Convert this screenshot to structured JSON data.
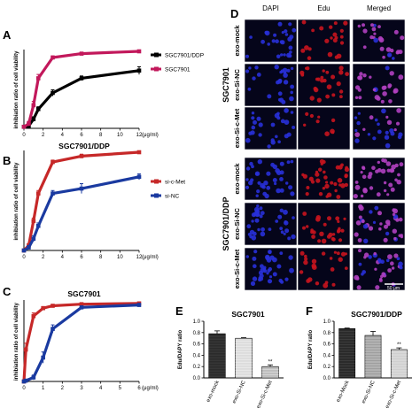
{
  "figure": {
    "panel_labels": [
      "A",
      "B",
      "C",
      "D",
      "E",
      "F"
    ]
  },
  "chart_data": [
    {
      "panel": "A",
      "type": "line",
      "title": "",
      "xlabel": "(μg/ml)",
      "ylabel": "inhibiation ratio of cell viability",
      "xlim": [
        0,
        12
      ],
      "xticks": [
        0,
        2,
        4,
        6,
        8,
        10,
        12
      ],
      "x": [
        0,
        0.5,
        1,
        1.5,
        3,
        6,
        12
      ],
      "series": [
        {
          "name": "SGC7901/DDP",
          "color": "#000000",
          "values": [
            0.02,
            0.03,
            0.12,
            0.25,
            0.46,
            0.65,
            0.75
          ],
          "errors": [
            0.02,
            0.02,
            0.03,
            0.03,
            0.04,
            0.03,
            0.05
          ]
        },
        {
          "name": "SGC7901",
          "color": "#c2185b",
          "values": [
            0.02,
            0.06,
            0.3,
            0.65,
            0.92,
            0.97,
            1.0
          ],
          "errors": [
            0.02,
            0.03,
            0.05,
            0.05,
            0.02,
            0.01,
            0.01
          ]
        }
      ]
    },
    {
      "panel": "B",
      "type": "line",
      "title": "SGC7901/DDP",
      "xlabel": "(μg/ml)",
      "ylabel": "inhibiation ratio of cell viability",
      "xlim": [
        0,
        12
      ],
      "xticks": [
        0,
        2,
        4,
        6,
        8,
        10,
        12
      ],
      "x": [
        0,
        0.5,
        1,
        1.5,
        3,
        6,
        12
      ],
      "series": [
        {
          "name": "si-c-Met",
          "color": "#c62828",
          "values": [
            0.0,
            0.05,
            0.3,
            0.58,
            0.9,
            0.96,
            1.0
          ],
          "errors": [
            0.01,
            0.02,
            0.03,
            0.03,
            0.02,
            0.02,
            0.01
          ]
        },
        {
          "name": "si-NC",
          "color": "#1a3aa0",
          "values": [
            0.0,
            0.03,
            0.12,
            0.25,
            0.58,
            0.63,
            0.75
          ],
          "errors": [
            0.01,
            0.02,
            0.03,
            0.03,
            0.03,
            0.05,
            0.03
          ]
        }
      ]
    },
    {
      "panel": "C",
      "type": "line",
      "title": "SGC7901",
      "xlabel": "(μg/ml)",
      "ylabel": "inhibiation ratio of cell viability",
      "xlim": [
        0,
        6
      ],
      "xticks": [
        0,
        1,
        2,
        3,
        4,
        5,
        6
      ],
      "x": [
        0,
        0.1,
        0.5,
        1,
        1.5,
        3,
        6
      ],
      "series": [
        {
          "name": "",
          "color": "#c62828",
          "values": [
            0.0,
            0.4,
            0.82,
            0.92,
            0.95,
            0.97,
            0.98
          ],
          "errors": [
            0.01,
            0.08,
            0.04,
            0.02,
            0.01,
            0.01,
            0.01
          ]
        },
        {
          "name": "",
          "color": "#1a3aa0",
          "values": [
            0.0,
            0.01,
            0.05,
            0.3,
            0.66,
            0.93,
            0.96
          ],
          "errors": [
            0.01,
            0.01,
            0.03,
            0.07,
            0.05,
            0.02,
            0.02
          ]
        }
      ]
    },
    {
      "panel": "E",
      "type": "bar",
      "title": "SGC7901",
      "ylabel": "Edu/DAPY ratio",
      "ylim": [
        0,
        1.0
      ],
      "yticks": [
        "0.0",
        "0.2",
        "0.4",
        "0.6",
        "0.8",
        "1.0"
      ],
      "categories": [
        "exo-mock",
        "exo-Si-NC",
        "exo-Si-c-Met"
      ],
      "values": [
        0.78,
        0.7,
        0.2
      ],
      "errors": [
        0.05,
        0.01,
        0.03
      ],
      "fills": [
        "#2b2b2b",
        "#dcdcdc",
        "#bdbdbd"
      ],
      "annotations": [
        "",
        "",
        "**"
      ]
    },
    {
      "panel": "F",
      "type": "bar",
      "title": "SGC7901/DDP",
      "ylabel": "Edu/DAPY ratio",
      "ylim": [
        0,
        1.0
      ],
      "yticks": [
        "0.0",
        "0.2",
        "0.4",
        "0.6",
        "0.8",
        "1.0"
      ],
      "categories": [
        "exo-Mock",
        "exo-Si-NC",
        "exo-Si-c-Met"
      ],
      "values": [
        0.87,
        0.75,
        0.5
      ],
      "errors": [
        0.01,
        0.07,
        0.03
      ],
      "fills": [
        "#2b2b2b",
        "#9e9e9e",
        "#cfcfcf"
      ],
      "annotations": [
        "",
        "",
        "**"
      ]
    }
  ],
  "microscopy": {
    "columns": [
      "DAPI",
      "Edu",
      "Merged"
    ],
    "groups": [
      {
        "label": "SGC7901",
        "rows": [
          "exo-mock",
          "exo-Si-NC",
          "exo-Si-c-Met"
        ]
      },
      {
        "label": "SGC7901/DDP",
        "rows": [
          "exo-mock",
          "exo-Si-NC",
          "exo-Si-c-Met"
        ]
      }
    ],
    "scale_bar": "50 μm"
  }
}
